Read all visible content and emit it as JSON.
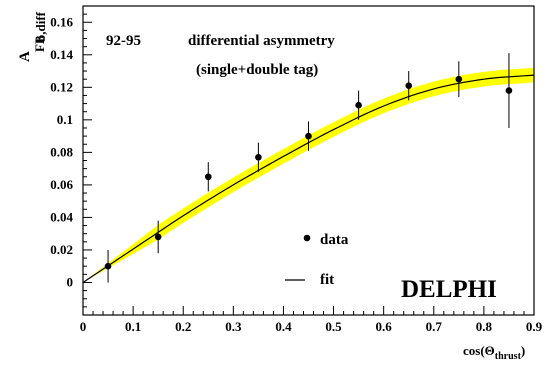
{
  "chart_data": {
    "type": "scatter",
    "xlim": [
      0,
      0.9
    ],
    "ylim": [
      -0.02,
      0.17
    ],
    "x_ticks": [
      "0",
      "0.1",
      "0.2",
      "0.3",
      "0.4",
      "0.5",
      "0.6",
      "0.7",
      "0.8",
      "0.9"
    ],
    "y_ticks": [
      "0",
      "0.02",
      "0.04",
      "0.06",
      "0.08",
      "0.1",
      "0.12",
      "0.14",
      "0.16"
    ],
    "xlabel": {
      "main": "cos(Θ",
      "sub": "thrust",
      "close": ")"
    },
    "ylabel": {
      "main": "A",
      "sub": "FB",
      "sup": "b,diff"
    },
    "annotations": {
      "years": "92-95",
      "title_line1": "differential asymmetry",
      "title_line2": "(single+double tag)",
      "logo": "DELPHI"
    },
    "legend": [
      {
        "label": "data",
        "marker": "dot"
      },
      {
        "label": "fit",
        "marker": "line"
      }
    ],
    "series": [
      {
        "name": "data",
        "points": [
          {
            "x": 0.05,
            "y": 0.01,
            "err": 0.01
          },
          {
            "x": 0.15,
            "y": 0.028,
            "err": 0.01
          },
          {
            "x": 0.25,
            "y": 0.065,
            "err": 0.009
          },
          {
            "x": 0.35,
            "y": 0.077,
            "err": 0.009
          },
          {
            "x": 0.45,
            "y": 0.09,
            "err": 0.009
          },
          {
            "x": 0.55,
            "y": 0.109,
            "err": 0.009
          },
          {
            "x": 0.65,
            "y": 0.121,
            "err": 0.009
          },
          {
            "x": 0.75,
            "y": 0.125,
            "err": 0.011
          },
          {
            "x": 0.85,
            "y": 0.118,
            "err": 0.023
          }
        ]
      },
      {
        "name": "fit",
        "type": "line",
        "points": [
          {
            "x": 0.0,
            "y": 0.0
          },
          {
            "x": 0.1,
            "y": 0.0205
          },
          {
            "x": 0.2,
            "y": 0.041
          },
          {
            "x": 0.3,
            "y": 0.06
          },
          {
            "x": 0.4,
            "y": 0.0775
          },
          {
            "x": 0.5,
            "y": 0.094
          },
          {
            "x": 0.6,
            "y": 0.1085
          },
          {
            "x": 0.7,
            "y": 0.119
          },
          {
            "x": 0.8,
            "y": 0.125
          },
          {
            "x": 0.9,
            "y": 0.1275
          }
        ],
        "band_halfwidth": 0.0045
      }
    ],
    "colors": {
      "band": "#ffff00",
      "line": "#000000",
      "marker": "#000000"
    }
  }
}
